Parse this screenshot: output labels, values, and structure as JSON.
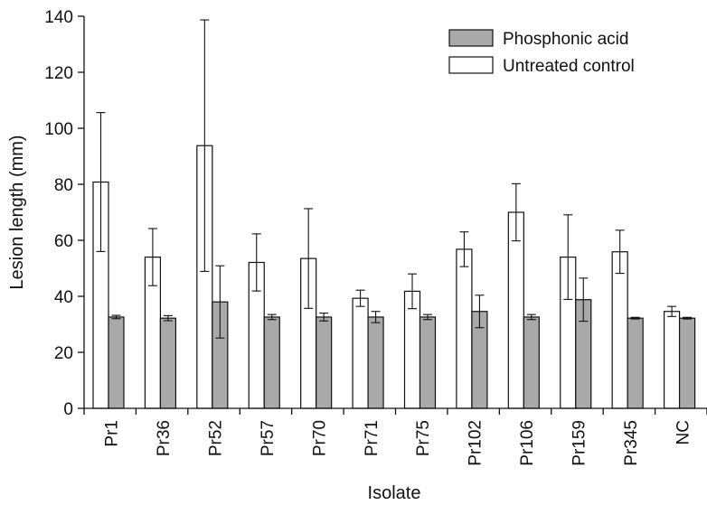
{
  "chart_data": {
    "type": "bar",
    "xlabel": "Isolate",
    "ylabel": "Lesion length (mm)",
    "ylim": [
      0,
      140
    ],
    "yticks": [
      0,
      20,
      40,
      60,
      80,
      100,
      120,
      140
    ],
    "grid": false,
    "legend_position": "top-right",
    "categories": [
      "Pr1",
      "Pr36",
      "Pr52",
      "Pr57",
      "Pr70",
      "Pr71",
      "Pr75",
      "Pr102",
      "Pr106",
      "Pr159",
      "Pr345",
      "NC"
    ],
    "series": [
      {
        "name": "Untreated control",
        "color": "#ffffff",
        "values": [
          80.8,
          54.0,
          93.8,
          52.1,
          53.5,
          39.3,
          41.8,
          56.8,
          70.0,
          54.0,
          55.9,
          34.6
        ],
        "errors": [
          24.8,
          10.2,
          44.9,
          10.2,
          17.8,
          2.9,
          6.2,
          6.2,
          10.2,
          15.1,
          7.7,
          1.8
        ]
      },
      {
        "name": "Phosphonic acid",
        "color": "#a9a9a9",
        "values": [
          32.6,
          32.2,
          38.0,
          32.6,
          32.6,
          32.6,
          32.6,
          34.6,
          32.6,
          38.8,
          32.2,
          32.2
        ],
        "errors": [
          0.6,
          0.9,
          12.9,
          0.9,
          1.4,
          2.0,
          0.9,
          5.8,
          0.9,
          7.7,
          0.3,
          0.3
        ]
      }
    ]
  }
}
